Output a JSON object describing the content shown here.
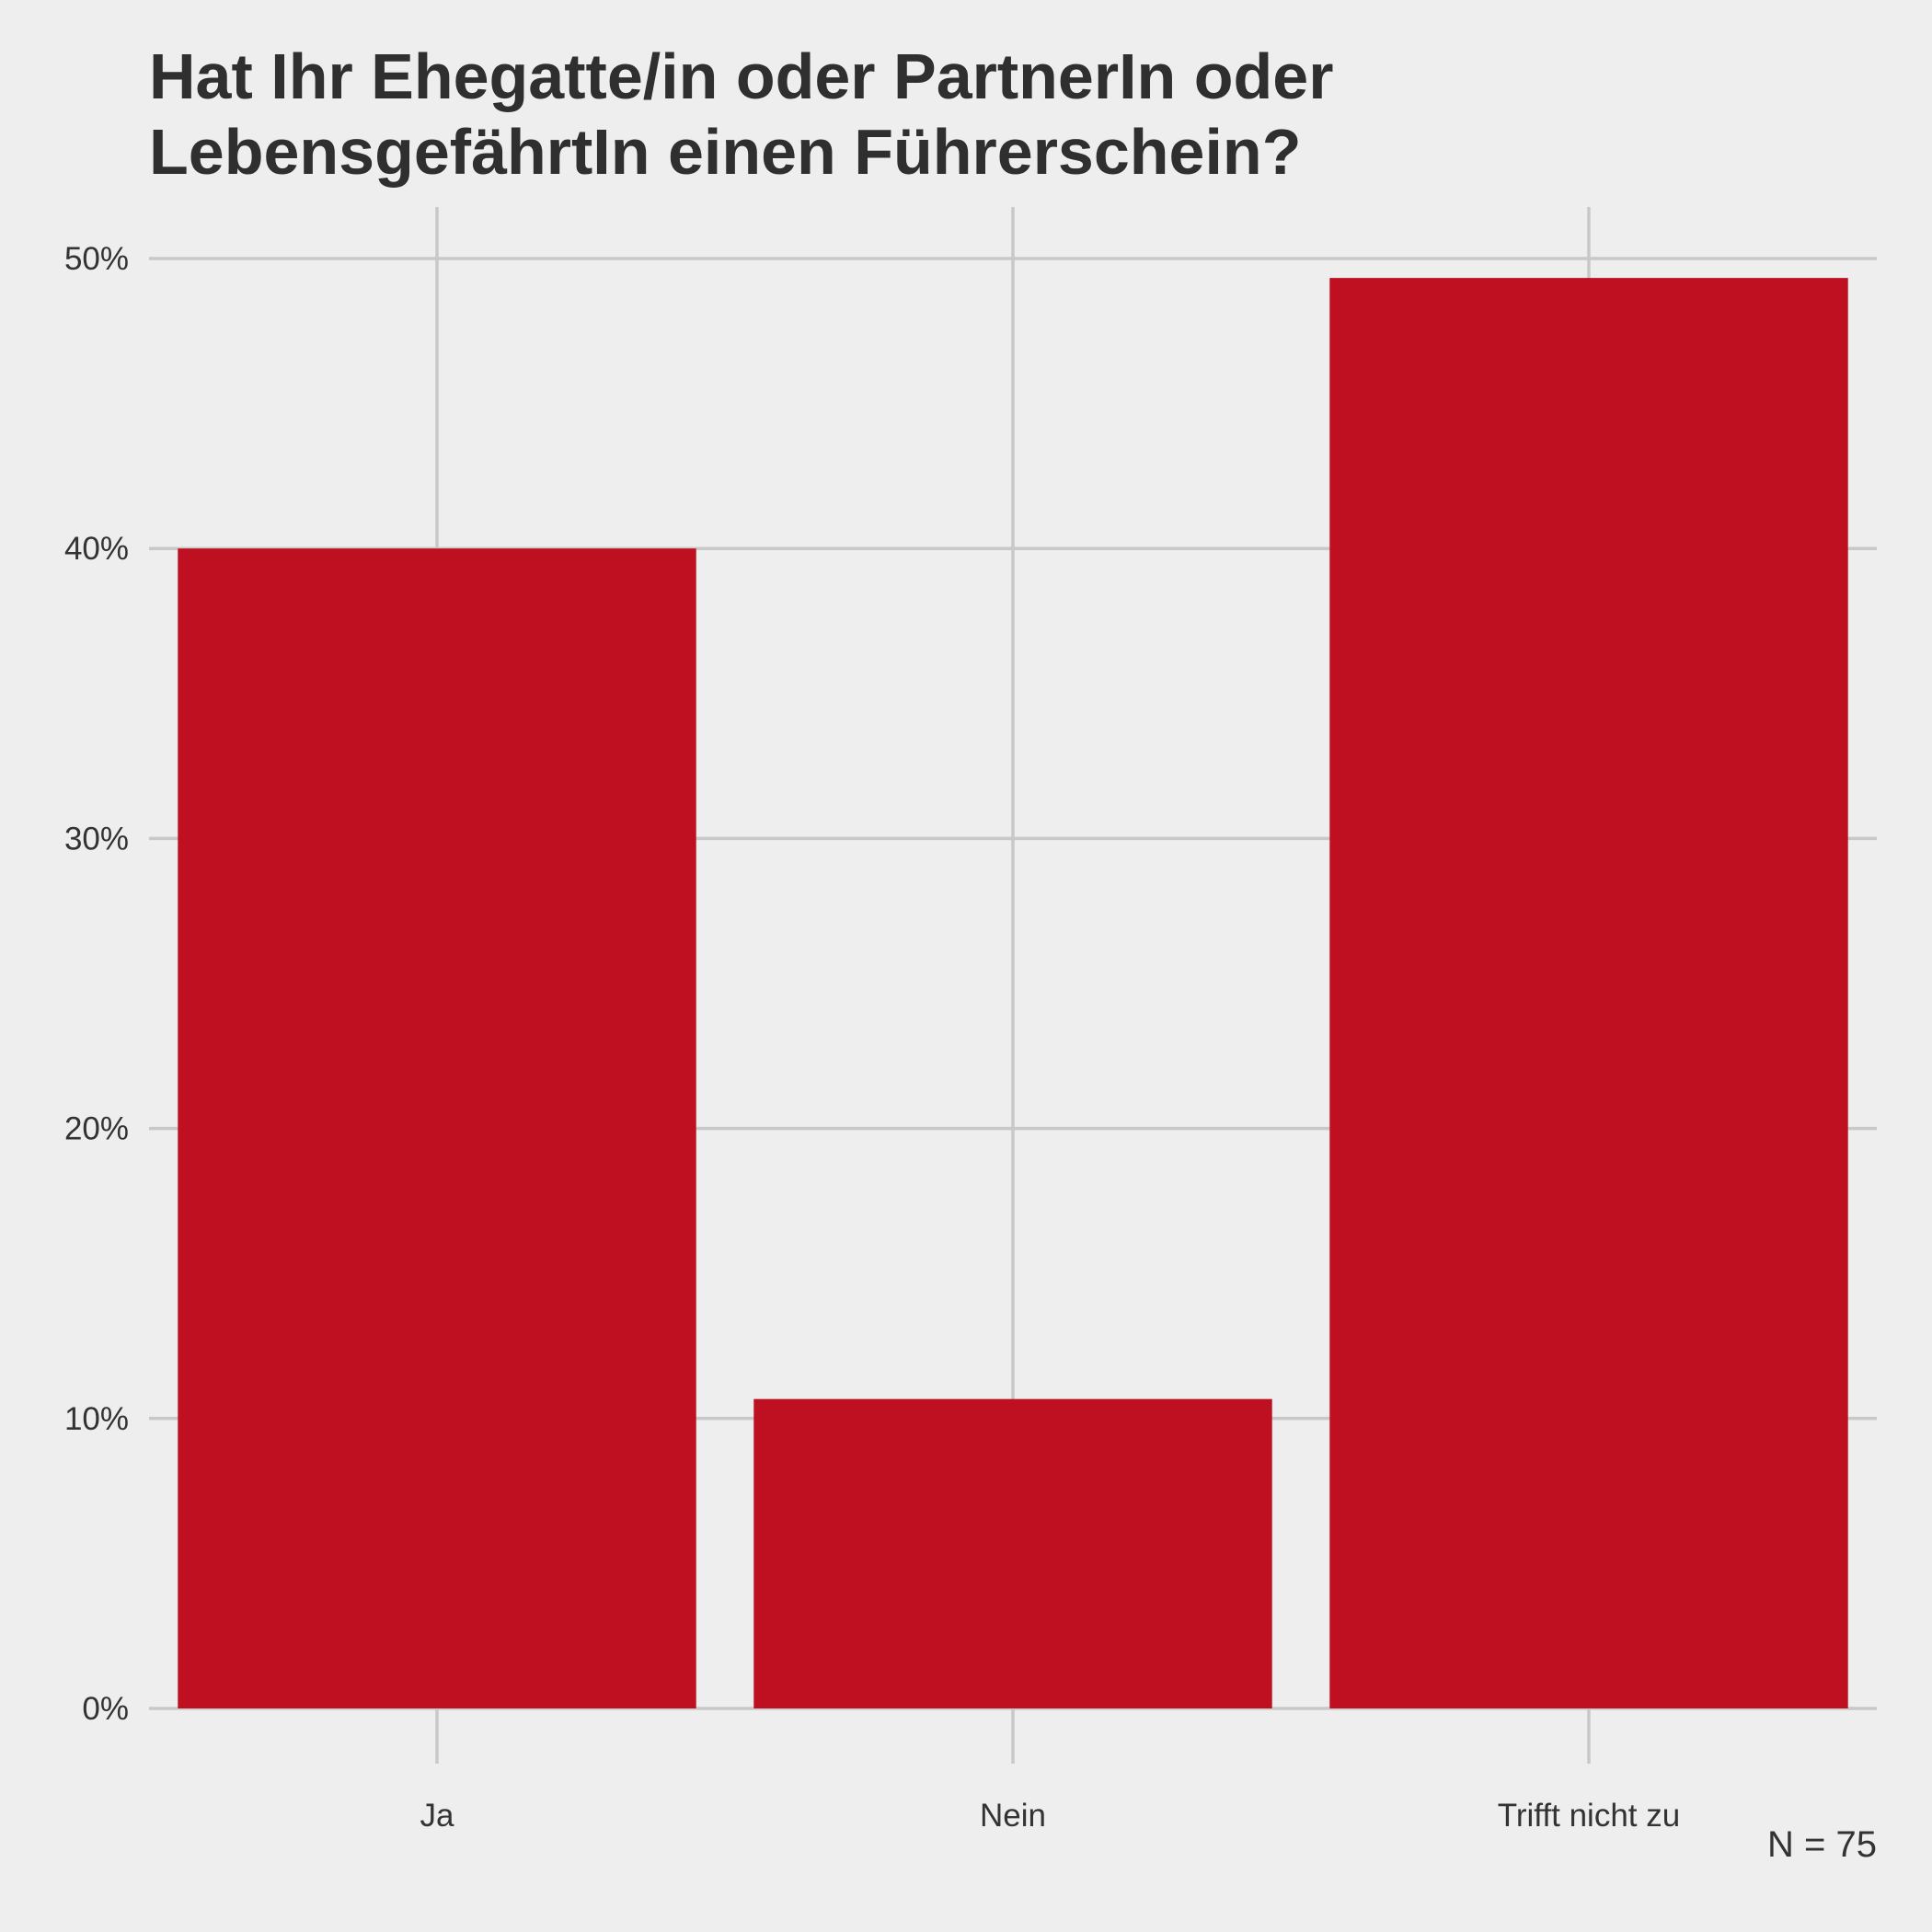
{
  "chart_data": {
    "type": "bar",
    "title": "Hat Ihr Ehegatte/in oder PartnerIn oder\nLebensgefährtIn einen Führerschein?",
    "categories": [
      "Ja",
      "Nein",
      "Trifft nicht zu"
    ],
    "values": [
      40.0,
      10.67,
      49.33
    ],
    "value_unit": "%",
    "ylim": [
      0,
      50
    ],
    "y_ticks": [
      0,
      10,
      20,
      30,
      40,
      50
    ],
    "y_tick_labels": [
      "0%",
      "10%",
      "20%",
      "30%",
      "40%",
      "50%"
    ],
    "xlabel": "",
    "ylabel": "",
    "caption": "N = 75",
    "grid": true,
    "legend": "none",
    "colors": {
      "bar": "#be1020",
      "grid": "#c8c8c8",
      "background": "#eeeeee",
      "text": "#333333"
    }
  }
}
